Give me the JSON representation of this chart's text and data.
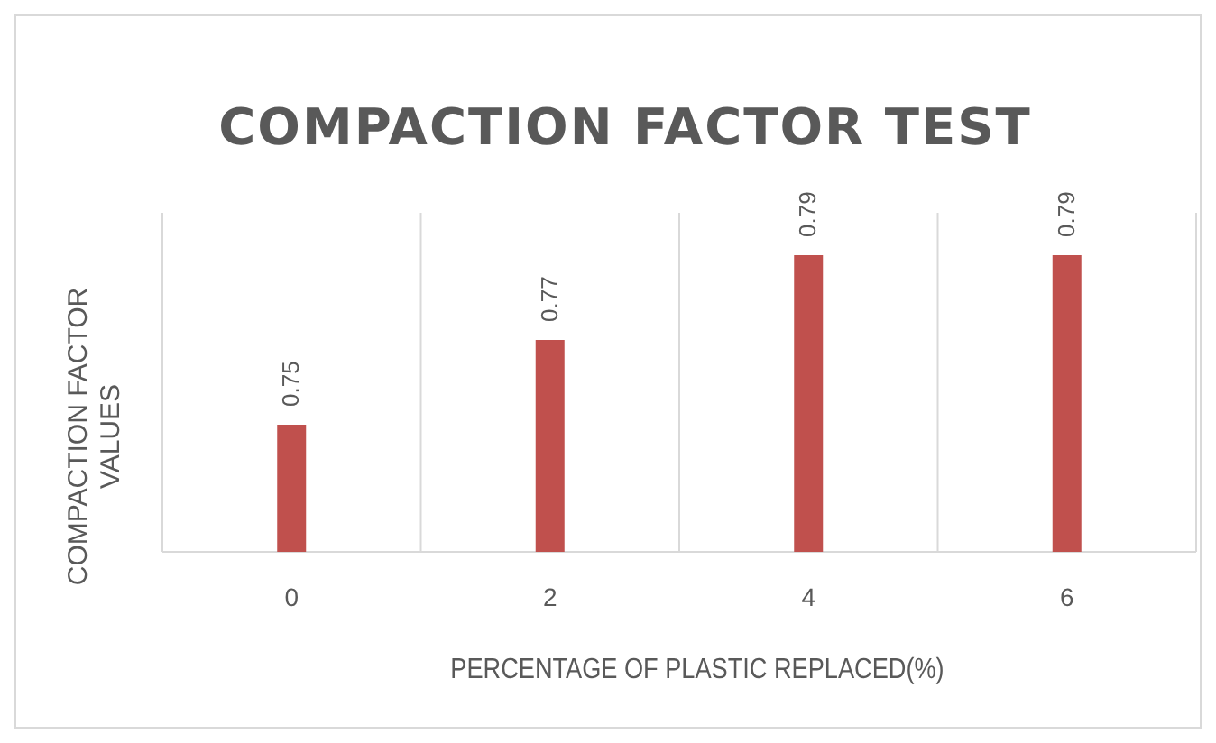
{
  "chart_data": {
    "type": "bar",
    "title": "COMPACTION FACTOR TEST",
    "xlabel": "PERCENTAGE OF PLASTIC REPLACED(%)",
    "ylabel": "COMPACTION FACTOR VALUES",
    "categories": [
      "0",
      "2",
      "4",
      "6"
    ],
    "values": [
      0.75,
      0.77,
      0.79,
      0.79
    ],
    "color": "#c0504d",
    "ylim": [
      0.72,
      0.8
    ],
    "tick_labels": "x",
    "data_labels": true,
    "grid": "x"
  }
}
